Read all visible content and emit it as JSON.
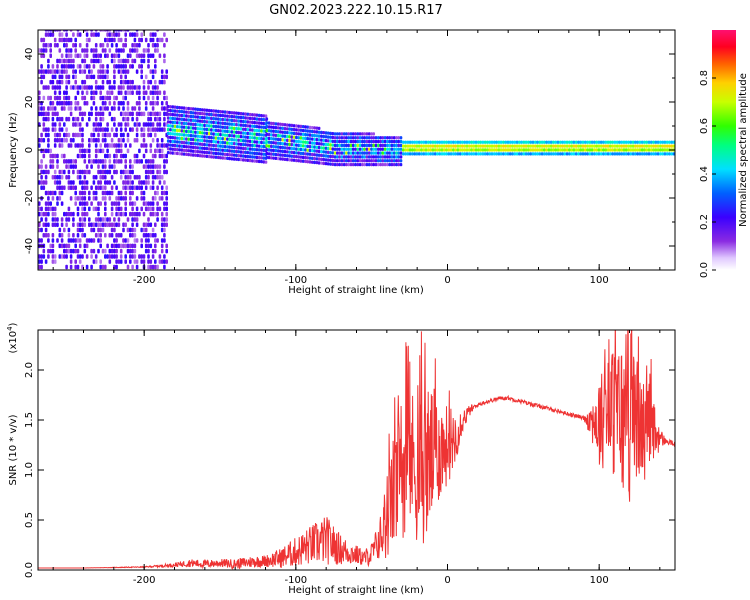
{
  "title": "GN02.2023.222.10.15.R17",
  "chart_data": [
    {
      "type": "heatmap",
      "xlabel": "Height of straight line (km)",
      "ylabel": "Frequency (Hz)",
      "xlim": [
        -270,
        150
      ],
      "ylim": [
        -50,
        50
      ],
      "xticks": [
        -200,
        -100,
        0,
        100
      ],
      "yticks": [
        -40,
        -20,
        0,
        20,
        40
      ],
      "colorbar": {
        "label": "Normalized spectral amplitude",
        "range": [
          0,
          1
        ],
        "ticks": [
          "0.0",
          "0.2",
          "0.4",
          "0.6",
          "0.8"
        ]
      },
      "features": [
        {
          "x_range": [
            -270,
            -185
          ],
          "freq_range": [
            -50,
            50
          ],
          "level": 0.15
        },
        {
          "x_range": [
            -185,
            -120
          ],
          "freq_range": [
            -2,
            18
          ],
          "level": 0.45
        },
        {
          "x_range": [
            -120,
            -30
          ],
          "freq_range": [
            -12,
            12
          ],
          "level": 0.45
        },
        {
          "x_range": [
            -30,
            150
          ],
          "freq_range": [
            -2,
            2
          ],
          "level": 0.85
        }
      ]
    },
    {
      "type": "line",
      "xlabel": "Height of straight line (km)",
      "ylabel": "SNR (10 * v/v)",
      "yscale_label": "(x10",
      "yscale_exp": "4",
      "xlim": [
        -270,
        150
      ],
      "ylim": [
        0,
        2.4
      ],
      "xticks": [
        -200,
        -100,
        0,
        100
      ],
      "yticks": [
        "0.0",
        "0.5",
        "1.0",
        "1.5",
        "2.0"
      ],
      "color": "#ee3333",
      "series": [
        {
          "x": [
            -270,
            -240,
            -200,
            -180,
            -170,
            -160,
            -150,
            -140,
            -130,
            -120,
            -110,
            -100,
            -90,
            -80,
            -70,
            -60,
            -55,
            -50,
            -45,
            -40,
            -35,
            -30,
            -25,
            -20,
            -15,
            -10,
            -5,
            0,
            5,
            10,
            15,
            20,
            25,
            30,
            35,
            40,
            50,
            60,
            70,
            80,
            90,
            95,
            100,
            105,
            110,
            115,
            120,
            125,
            130,
            135,
            140,
            145,
            150
          ],
          "y": [
            0.02,
            0.02,
            0.03,
            0.05,
            0.07,
            0.06,
            0.07,
            0.06,
            0.08,
            0.09,
            0.12,
            0.18,
            0.25,
            0.3,
            0.2,
            0.15,
            0.12,
            0.16,
            0.3,
            0.5,
            0.8,
            1.0,
            1.15,
            1.0,
            1.05,
            1.15,
            1.2,
            1.25,
            1.35,
            1.5,
            1.6,
            1.65,
            1.68,
            1.7,
            1.72,
            1.72,
            1.68,
            1.64,
            1.6,
            1.56,
            1.52,
            1.5,
            1.48,
            1.55,
            1.6,
            1.5,
            1.45,
            1.45,
            1.4,
            1.36,
            1.32,
            1.28,
            1.26
          ],
          "noise": [
            0,
            0,
            0.005,
            0.02,
            0.04,
            0.04,
            0.04,
            0.05,
            0.06,
            0.06,
            0.1,
            0.15,
            0.2,
            0.25,
            0.15,
            0.1,
            0.08,
            0.12,
            0.2,
            0.4,
            0.6,
            0.7,
            0.7,
            0.75,
            0.8,
            0.7,
            0.5,
            0.4,
            0.3,
            0.12,
            0.05,
            0.02,
            0.02,
            0.02,
            0.02,
            0.02,
            0.02,
            0.02,
            0.02,
            0.02,
            0.02,
            0.2,
            0.5,
            0.5,
            0.7,
            0.8,
            0.8,
            0.6,
            0.5,
            0.4,
            0.1,
            0.03,
            0.02
          ]
        }
      ]
    }
  ]
}
